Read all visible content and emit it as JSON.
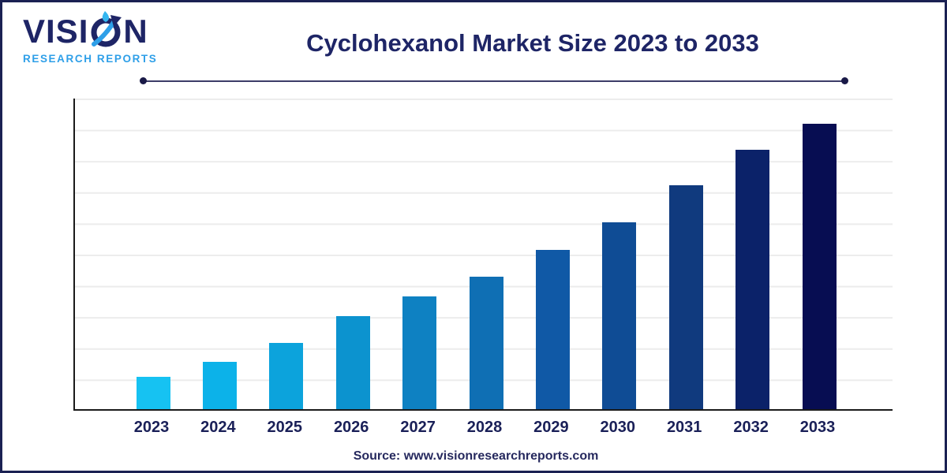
{
  "brand": {
    "name_left": "VISI",
    "name_right": "N",
    "tagline": "RESEARCH REPORTS",
    "navy_color": "#1e2566",
    "light_blue_color": "#2e9fe8"
  },
  "header": {
    "title": "Cyclohexanol Market Size 2023 to 2033"
  },
  "footer": {
    "source_text": "Source: www.visionresearchreports.com"
  },
  "chart_data": {
    "type": "bar",
    "title": "Cyclohexanol Market Size 2023 to 2033",
    "categories": [
      "2023",
      "2024",
      "2025",
      "2026",
      "2027",
      "2028",
      "2029",
      "2030",
      "2031",
      "2032",
      "2033"
    ],
    "values_pct_of_plot_height": [
      10.4,
      15.2,
      21.3,
      29.9,
      36.3,
      42.6,
      51.3,
      60.2,
      72.1,
      83.5,
      91.9
    ],
    "unit_note": "y-axis has no tick labels; values estimated as percent of plot height",
    "bar_colors": [
      "#16c2f2",
      "#0cb2e9",
      "#0ca3dc",
      "#0c93cf",
      "#0e81c2",
      "#0f6fb4",
      "#1059a6",
      "#0f4c95",
      "#103a7e",
      "#0b2269",
      "#070d52"
    ],
    "xlabel": "",
    "ylabel": "",
    "legend": "none",
    "grid": "horizontal gridlines, light gray",
    "gridline_color": "#ececec",
    "gridline_intervals": 10,
    "axis_color": "#1a1a1a",
    "ylim": [
      0,
      100
    ]
  }
}
